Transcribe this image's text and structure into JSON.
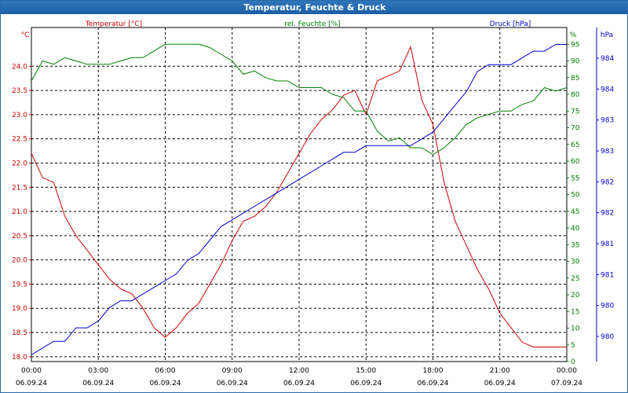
{
  "window": {
    "title": "Temperatur, Feuchte & Druck"
  },
  "colors": {
    "temperature": "#cc0000",
    "humidity": "#008000",
    "pressure": "#0000cc",
    "grid": "#000000",
    "title_bg": "#1f65aa"
  },
  "chart_data": {
    "type": "line",
    "title": "Temperatur, Feuchte & Druck",
    "grid": true,
    "x_ticks": [
      {
        "time": "00:00",
        "date": "06.09.24"
      },
      {
        "time": "03:00",
        "date": "06.09.24"
      },
      {
        "time": "06:00",
        "date": "06.09.24"
      },
      {
        "time": "09:00",
        "date": "06.09.24"
      },
      {
        "time": "12:00",
        "date": "06.09.24"
      },
      {
        "time": "15:00",
        "date": "06.09.24"
      },
      {
        "time": "18:00",
        "date": "06.09.24"
      },
      {
        "time": "21:00",
        "date": "06.09.24"
      },
      {
        "time": "00:00",
        "date": "07.09.24"
      }
    ],
    "axes": {
      "temperature": {
        "label": "Temperatur [°C]",
        "unit": "°C",
        "ylim": [
          17.9,
          24.8
        ],
        "ticks": [
          "18.0",
          "18.5",
          "19.0",
          "19.5",
          "20.0",
          "20.5",
          "21.0",
          "21.5",
          "22.0",
          "22.5",
          "23.0",
          "23.5",
          "24.0"
        ]
      },
      "humidity": {
        "label": "rel. Feuchte [%]",
        "unit": "%",
        "ylim": [
          0,
          100
        ],
        "ticks": [
          "0",
          "5",
          "10",
          "15",
          "20",
          "25",
          "30",
          "35",
          "40",
          "45",
          "50",
          "55",
          "60",
          "65",
          "70",
          "75",
          "80",
          "85",
          "90",
          "95"
        ]
      },
      "pressure": {
        "label": "Druck [hPa]",
        "unit": "hPa",
        "ticks": [
          "980",
          "980",
          "981",
          "981",
          "982",
          "982",
          "983",
          "983",
          "984",
          "984"
        ]
      }
    },
    "series": [
      {
        "name": "Temperatur [°C]",
        "axis": "temperature",
        "x": [
          0,
          0.5,
          1,
          1.5,
          2,
          2.5,
          3,
          3.5,
          4,
          4.5,
          5,
          5.5,
          6,
          6.5,
          7,
          7.5,
          8,
          8.5,
          9,
          9.5,
          10,
          10.5,
          11,
          11.5,
          12,
          12.5,
          13,
          13.5,
          14,
          14.5,
          15,
          15.5,
          16,
          16.5,
          17,
          17.5,
          18,
          18.5,
          19,
          19.5,
          20,
          20.5,
          21,
          21.5,
          22,
          22.5,
          23,
          23.5,
          24
        ],
        "values": [
          22.2,
          21.7,
          21.6,
          20.9,
          20.5,
          20.2,
          19.9,
          19.6,
          19.4,
          19.3,
          19.0,
          18.6,
          18.4,
          18.6,
          18.9,
          19.1,
          19.5,
          19.9,
          20.4,
          20.8,
          20.9,
          21.1,
          21.4,
          21.8,
          22.2,
          22.6,
          22.9,
          23.1,
          23.4,
          23.5,
          23.0,
          23.7,
          23.8,
          23.9,
          24.4,
          23.3,
          22.8,
          21.6,
          20.8,
          20.3,
          19.8,
          19.4,
          18.9,
          18.6,
          18.3,
          18.2,
          18.2,
          18.2,
          18.2
        ]
      },
      {
        "name": "rel. Feuchte [%]",
        "axis": "humidity",
        "x": [
          0,
          0.5,
          1,
          1.5,
          2,
          2.5,
          3,
          3.5,
          4,
          4.5,
          5,
          5.5,
          6,
          6.5,
          7,
          7.5,
          8,
          8.5,
          9,
          9.5,
          10,
          10.5,
          11,
          11.5,
          12,
          12.5,
          13,
          13.5,
          14,
          14.5,
          15,
          15.5,
          16,
          16.5,
          17,
          17.5,
          18,
          18.5,
          19,
          19.5,
          20,
          20.5,
          21,
          21.5,
          22,
          22.5,
          23,
          23.5,
          24
        ],
        "values": [
          84,
          90,
          89,
          91,
          90,
          89,
          89,
          89,
          90,
          91,
          91,
          93,
          95,
          95,
          95,
          95,
          94,
          92,
          90,
          86,
          87,
          85,
          84,
          84,
          82,
          82,
          82,
          80,
          79,
          75,
          75,
          69,
          66,
          67,
          64,
          64,
          62,
          64,
          67,
          71,
          73,
          74,
          75,
          75,
          77,
          78,
          82,
          81,
          82
        ]
      },
      {
        "name": "Druck [hPa]",
        "axis": "pressure",
        "x": [
          0,
          0.5,
          1,
          1.5,
          2,
          2.5,
          3,
          3.5,
          4,
          4.5,
          5,
          5.5,
          6,
          6.5,
          7,
          7.5,
          8,
          8.5,
          9,
          9.5,
          10,
          10.5,
          11,
          11.5,
          12,
          12.5,
          13,
          13.5,
          14,
          14.5,
          15,
          15.5,
          16,
          16.5,
          17,
          17.5,
          18,
          18.5,
          19,
          19.5,
          20,
          20.5,
          21,
          21.5,
          22,
          22.5,
          23,
          23.5,
          24
        ],
        "values": [
          979.8,
          979.9,
          980.0,
          980.0,
          980.2,
          980.2,
          980.3,
          980.5,
          980.6,
          980.6,
          980.7,
          980.8,
          980.9,
          981.0,
          981.2,
          981.3,
          981.5,
          981.7,
          981.8,
          981.9,
          982.0,
          982.1,
          982.2,
          982.3,
          982.4,
          982.5,
          982.6,
          982.7,
          982.8,
          982.8,
          982.9,
          982.9,
          982.9,
          982.9,
          982.9,
          983.0,
          983.1,
          983.3,
          983.5,
          983.7,
          984.0,
          984.1,
          984.1,
          984.1,
          984.2,
          984.3,
          984.3,
          984.4,
          984.4
        ]
      }
    ],
    "pressure_ylim": [
      979.7,
      984.65
    ]
  }
}
